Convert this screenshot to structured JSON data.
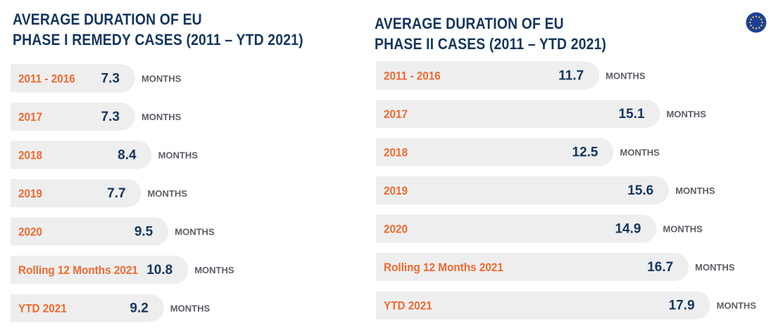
{
  "colors": {
    "title": "#14365c",
    "category": "#ef6a2f",
    "value": "#14365c",
    "unit": "#5b5f66",
    "bar": "#eeeeef",
    "flag_bg": "#1c3f99",
    "flag_star": "#f7cf2b"
  },
  "flag_icon": "eu-flag-icon",
  "charts": [
    {
      "title_lines": [
        "AVERAGE DURATION OF EU",
        "PHASE I REMEDY CASES (2011 – YTD 2021)"
      ]
    },
    {
      "title_lines": [
        "AVERAGE DURATION OF EU",
        "PHASE II CASES (2011 – YTD 2021)"
      ]
    }
  ],
  "chart_data": [
    {
      "type": "bar",
      "orientation": "horizontal",
      "title": "AVERAGE DURATION OF EU PHASE I REMEDY CASES (2011 – YTD 2021)",
      "categories": [
        "2011 - 2016",
        "2017",
        "2018",
        "2019",
        "2020",
        "Rolling 12 Months 2021",
        "YTD 2021"
      ],
      "values": [
        7.3,
        7.3,
        8.4,
        7.7,
        9.5,
        10.8,
        9.2
      ],
      "unit": "MONTHS",
      "grid": false
    },
    {
      "type": "bar",
      "orientation": "horizontal",
      "title": "AVERAGE DURATION OF EU PHASE II CASES (2011 – YTD 2021)",
      "categories": [
        "2011 - 2016",
        "2017",
        "2018",
        "2019",
        "2020",
        "Rolling 12 Months 2021",
        "YTD 2021"
      ],
      "values": [
        11.7,
        15.1,
        12.5,
        15.6,
        14.9,
        16.7,
        17.9
      ],
      "unit": "MONTHS",
      "grid": false
    }
  ]
}
